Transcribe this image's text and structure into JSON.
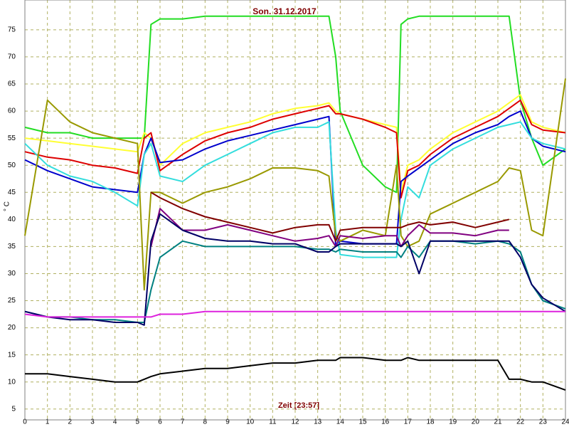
{
  "chart_data": {
    "type": "line",
    "title": "Son. 31.12.2017",
    "xlabel": "Zeit [23:57]",
    "ylabel": "° C",
    "x": [
      0,
      1,
      2,
      3,
      4,
      5,
      5.3,
      5.6,
      6,
      7,
      8,
      9,
      10,
      11,
      12,
      13,
      13.5,
      13.8,
      14,
      15,
      16,
      16.5,
      16.7,
      17,
      17.5,
      18,
      19,
      20,
      21,
      21.5,
      22,
      22.5,
      23,
      24
    ],
    "xlim": [
      0,
      24
    ],
    "xticks": [
      0,
      1,
      2,
      3,
      4,
      5,
      6,
      7,
      8,
      9,
      10,
      11,
      12,
      13,
      14,
      15,
      16,
      17,
      18,
      19,
      20,
      21,
      22,
      23,
      24
    ],
    "ylim": [
      3,
      80.5
    ],
    "yticks": [
      5,
      10,
      15,
      20,
      25,
      30,
      35,
      40,
      45,
      50,
      55,
      60,
      65,
      70,
      75
    ],
    "grid": true,
    "series": [
      {
        "color": "#22dd22",
        "values": [
          57,
          56,
          56,
          55,
          55,
          55,
          55,
          76,
          77,
          77,
          77.5,
          77.5,
          77.5,
          77.5,
          77.5,
          77.5,
          77.5,
          70,
          60,
          50,
          46,
          45,
          76,
          77,
          77.5,
          77.5,
          77.5,
          77.5,
          77.5,
          77.5,
          62,
          55,
          50,
          53
        ]
      },
      {
        "color": "#ffff33",
        "values": [
          55,
          54.5,
          54,
          53.5,
          53,
          52.5,
          56,
          55,
          50,
          54,
          56,
          57,
          58,
          59.5,
          60.5,
          61,
          61.5,
          60,
          59.5,
          58.5,
          57.5,
          57,
          45,
          50,
          51,
          53,
          56,
          58,
          60,
          61.5,
          63,
          58,
          57,
          56
        ]
      },
      {
        "color": "#dd0000",
        "values": [
          52.5,
          51.5,
          51,
          50,
          49.5,
          48.5,
          55,
          56,
          49,
          52,
          54.5,
          56,
          57,
          58.5,
          59.5,
          60.5,
          61,
          59.5,
          59.5,
          58.5,
          57,
          56,
          44,
          49,
          50,
          52,
          55,
          57,
          59,
          60.5,
          62,
          57.5,
          56.5,
          56
        ]
      },
      {
        "color": "#0000cc",
        "values": [
          51,
          49,
          47.5,
          46,
          45.5,
          45,
          52,
          55,
          50.5,
          51,
          53,
          54.5,
          55.5,
          56.5,
          57.5,
          58.5,
          59,
          35,
          36,
          35.5,
          35.5,
          35.5,
          47,
          48,
          49.5,
          51,
          54,
          56,
          57.5,
          59,
          60,
          55,
          53.5,
          52.5
        ]
      },
      {
        "color": "#33dddd",
        "values": [
          54,
          50,
          48,
          47,
          45,
          42.5,
          52,
          54,
          48,
          47,
          50,
          52,
          54,
          56,
          57,
          57,
          58,
          38,
          33.5,
          33,
          33,
          33,
          40,
          46,
          44,
          50,
          53,
          55,
          57,
          57.5,
          58,
          55,
          54,
          53
        ]
      },
      {
        "color": "#999900",
        "values": [
          37,
          62,
          58,
          56,
          55,
          54,
          27,
          45,
          45,
          43,
          45,
          46,
          47.5,
          49.5,
          49.5,
          49,
          48,
          37,
          36,
          38,
          37,
          50,
          37,
          35,
          36,
          41,
          43,
          45,
          47,
          49.5,
          49,
          38,
          37,
          66
        ]
      },
      {
        "color": "#800000",
        "values": [
          null,
          null,
          null,
          null,
          null,
          null,
          null,
          45,
          44,
          42,
          40.5,
          39.5,
          38.5,
          37.5,
          38.5,
          39,
          39,
          36,
          38,
          38.5,
          38.5,
          38.5,
          38.5,
          39,
          39.5,
          39,
          39.5,
          38.5,
          39.5,
          40,
          null,
          null,
          null,
          null
        ]
      },
      {
        "color": "#800080",
        "values": [
          null,
          null,
          null,
          null,
          null,
          null,
          null,
          35,
          42,
          38,
          38,
          39,
          38,
          37,
          36,
          36.5,
          37,
          35,
          37,
          36.5,
          37,
          37,
          35,
          37,
          39,
          37.5,
          37.5,
          37,
          38,
          38,
          null,
          null,
          null,
          null
        ]
      },
      {
        "color": "#008080",
        "values": [
          23,
          22,
          22,
          21.5,
          21.5,
          21,
          21,
          27,
          33,
          36,
          35,
          35,
          35,
          35,
          35,
          34.5,
          34.5,
          34,
          34.5,
          34,
          34,
          34,
          33,
          35,
          33,
          36,
          36,
          35.5,
          36,
          35.5,
          34,
          28,
          25,
          23.5
        ]
      },
      {
        "color": "#000066",
        "values": [
          23,
          22,
          21.5,
          21.5,
          21,
          21,
          20.5,
          36,
          41,
          38,
          36.5,
          36,
          36,
          35.5,
          35.5,
          34,
          34,
          35,
          35.5,
          35.5,
          35.5,
          35.5,
          35,
          36,
          30,
          36,
          36,
          36,
          36,
          36,
          33,
          28,
          25.5,
          23
        ]
      },
      {
        "color": "#dd22dd",
        "values": [
          22.5,
          22,
          22,
          22,
          22,
          22,
          22,
          22,
          22.5,
          22.5,
          23,
          23,
          23,
          23,
          23,
          23,
          23,
          23,
          23,
          23,
          23,
          23,
          23,
          23,
          23,
          23,
          23,
          23,
          23,
          23,
          23,
          23,
          23,
          23
        ]
      },
      {
        "color": "#000000",
        "values": [
          11.5,
          11.5,
          11,
          10.5,
          10,
          10,
          10.5,
          11,
          11.5,
          12,
          12.5,
          12.5,
          13,
          13.5,
          13.5,
          14,
          14,
          14,
          14.5,
          14.5,
          14,
          14,
          14,
          14.5,
          14,
          14,
          14,
          14,
          14,
          10.5,
          10.5,
          10,
          10,
          8.5
        ]
      }
    ]
  }
}
